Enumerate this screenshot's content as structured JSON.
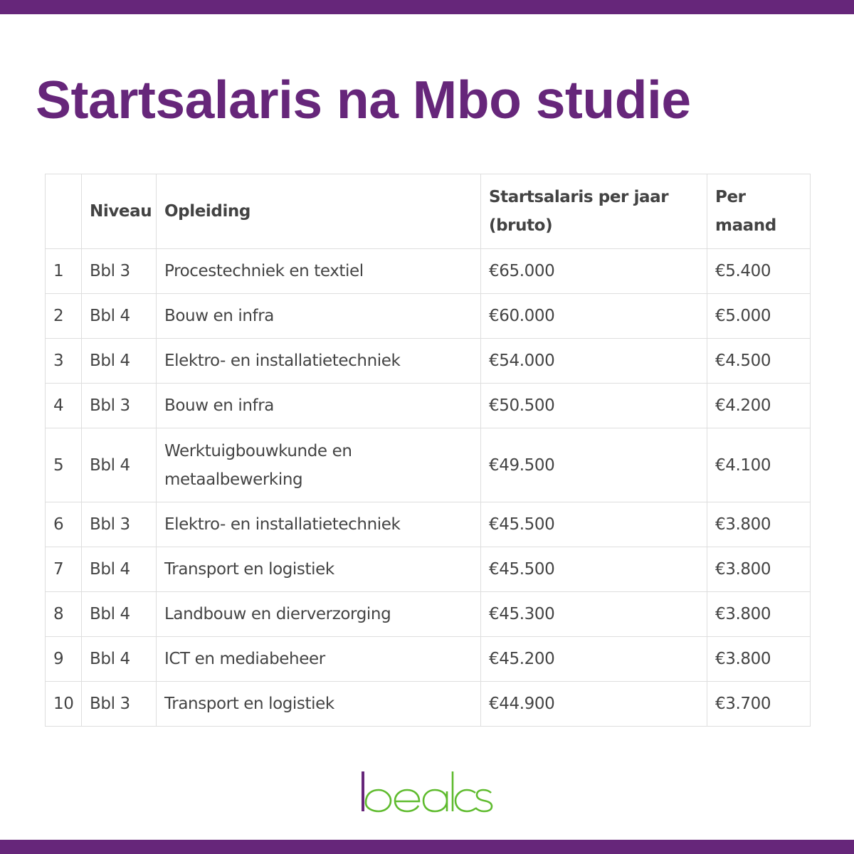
{
  "title": "Startsalaris na Mbo studie",
  "table": {
    "headers": [
      "",
      "Niveau",
      "Opleiding",
      "Startsalaris per jaar (bruto)",
      "Per maand"
    ],
    "rows": [
      [
        "1",
        "Bbl 3",
        "Procestechniek en textiel",
        "€65.000",
        "€5.400"
      ],
      [
        "2",
        "Bbl 4",
        "Bouw en infra",
        "€60.000",
        "€5.000"
      ],
      [
        "3",
        "Bbl 4",
        "Elektro- en installatietechniek",
        "€54.000",
        "€4.500"
      ],
      [
        "4",
        "Bbl 3",
        "Bouw en infra",
        "€50.500",
        "€4.200"
      ],
      [
        "5",
        "Bbl 4",
        "Werktuigbouwkunde en metaalbewerking",
        "€49.500",
        "€4.100"
      ],
      [
        "6",
        "Bbl 3",
        "Elektro- en installatietechniek",
        "€45.500",
        "€3.800"
      ],
      [
        "7",
        "Bbl 4",
        "Transport en logistiek",
        "€45.500",
        "€3.800"
      ],
      [
        "8",
        "Bbl 4",
        "Landbouw en dierverzorging",
        "€45.300",
        "€3.800"
      ],
      [
        "9",
        "Bbl 4",
        "ICT en mediabeheer",
        "€45.200",
        "€3.800"
      ],
      [
        "10",
        "Bbl 3",
        "Transport en logistiek",
        "€44.900",
        "€3.700"
      ]
    ]
  },
  "logo": {
    "text": "beaks",
    "name": "beaks-logo"
  },
  "colors": {
    "brand_purple": "#66267a",
    "logo_green": "#5fbb2e",
    "logo_bar": "#66267a"
  }
}
